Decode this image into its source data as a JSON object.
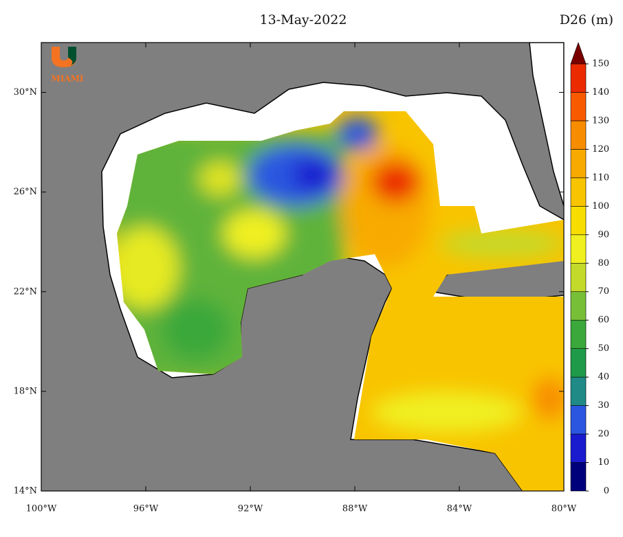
{
  "map": {
    "title": "13-May-2022",
    "units": "D26 (m)",
    "logo": "MIAMI",
    "xlim": [
      -100,
      -80
    ],
    "ylim": [
      14,
      32
    ],
    "lon_ticks": [
      {
        "value": -100,
        "label": "100°W"
      },
      {
        "value": -96,
        "label": "96°W"
      },
      {
        "value": -92,
        "label": "92°W"
      },
      {
        "value": -88,
        "label": "88°W"
      },
      {
        "value": -84,
        "label": "84°W"
      },
      {
        "value": -80,
        "label": "80°W"
      }
    ],
    "lat_ticks": [
      {
        "value": 14,
        "label": "14°N"
      },
      {
        "value": 18,
        "label": "18°N"
      },
      {
        "value": 22,
        "label": "22°N"
      },
      {
        "value": 26,
        "label": "26°N"
      },
      {
        "value": 30,
        "label": "30°N"
      }
    ],
    "colorbar": {
      "ticks": [
        0,
        10,
        20,
        30,
        40,
        50,
        60,
        70,
        80,
        90,
        100,
        110,
        120,
        130,
        140,
        150
      ],
      "colors": [
        "#00007a",
        "#1a1acf",
        "#2a56e0",
        "#1f8a86",
        "#1f9a48",
        "#3aa83a",
        "#78bf38",
        "#c4da2a",
        "#f0f020",
        "#f8de00",
        "#f8c400",
        "#f8aa00",
        "#f88c00",
        "#f85a00",
        "#ec2a00"
      ],
      "extend_color": "#7a0000"
    }
  }
}
